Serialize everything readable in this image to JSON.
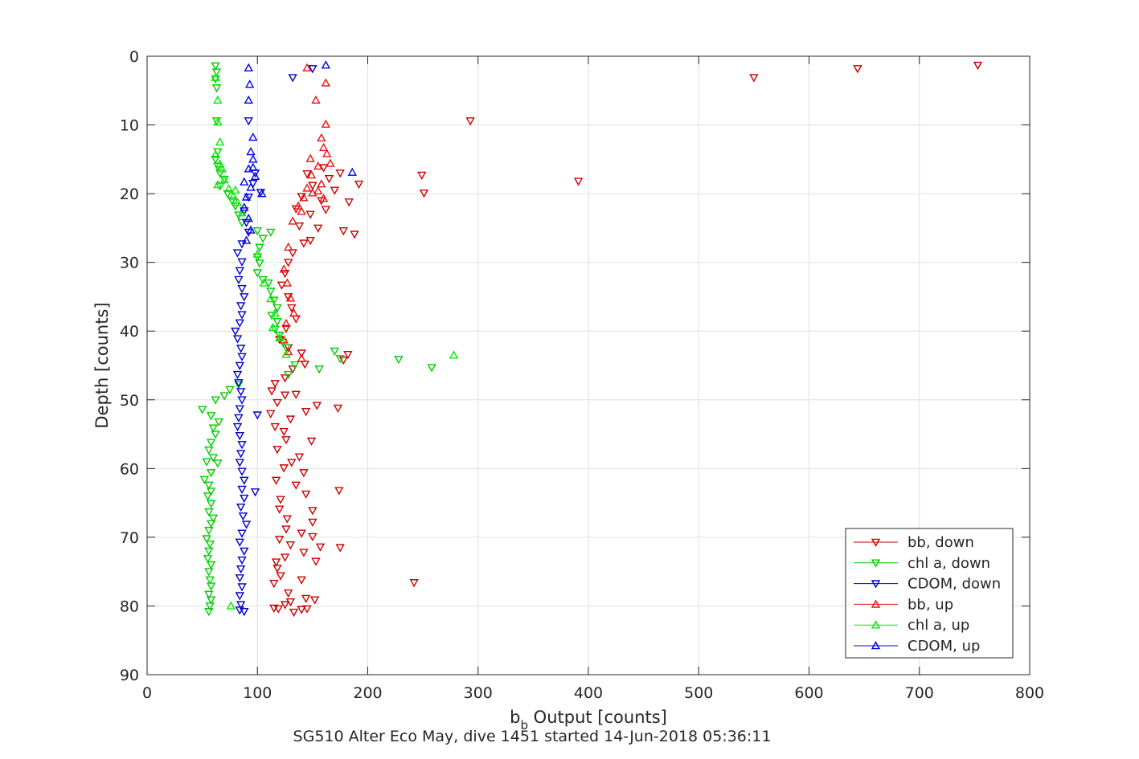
{
  "chart_data": {
    "type": "scatter",
    "title": "",
    "caption": "SG510 Alter Eco May, dive 1451 started 14-Jun-2018 05:36:11",
    "xlabel": {
      "main": "b",
      "subscript": "b",
      "rest": " Output [counts]"
    },
    "ylabel": "Depth [counts]",
    "xlim": [
      0,
      800
    ],
    "ylim": [
      0,
      90
    ],
    "y_reversed": true,
    "grid": true,
    "legend_position": "bottom-right",
    "x_ticks": [
      "0",
      "100",
      "200",
      "300",
      "400",
      "500",
      "600",
      "700",
      "800"
    ],
    "y_ticks": [
      "0",
      "10",
      "20",
      "30",
      "40",
      "50",
      "60",
      "70",
      "80",
      "90"
    ],
    "series": [
      {
        "name": "bb, down",
        "color": "#cc0000",
        "marker": "triangle-down",
        "points": [
          [
            753,
            1.3
          ],
          [
            644,
            1.8
          ],
          [
            550,
            3.1
          ],
          [
            293,
            9.4
          ],
          [
            391,
            18.2
          ],
          [
            249,
            17.3
          ],
          [
            251,
            19.9
          ],
          [
            242,
            76.6
          ],
          [
            160,
            16.2
          ],
          [
            165,
            17.8
          ],
          [
            170,
            19.5
          ],
          [
            158,
            21.0
          ],
          [
            150,
            18.8
          ],
          [
            145,
            17.1
          ],
          [
            140,
            20.4
          ],
          [
            135,
            22.2
          ],
          [
            148,
            23.0
          ],
          [
            162,
            22.3
          ],
          [
            175,
            17.0
          ],
          [
            192,
            18.6
          ],
          [
            183,
            21.2
          ],
          [
            178,
            25.4
          ],
          [
            188,
            25.9
          ],
          [
            155,
            25.0
          ],
          [
            148,
            26.8
          ],
          [
            138,
            24.7
          ],
          [
            142,
            27.2
          ],
          [
            132,
            28.6
          ],
          [
            128,
            30.0
          ],
          [
            125,
            31.6
          ],
          [
            122,
            33.3
          ],
          [
            128,
            35.0
          ],
          [
            131,
            36.6
          ],
          [
            135,
            38.2
          ],
          [
            126,
            39.6
          ],
          [
            120,
            41.2
          ],
          [
            128,
            42.4
          ],
          [
            140,
            43.2
          ],
          [
            182,
            43.4
          ],
          [
            178,
            44.2
          ],
          [
            143,
            44.8
          ],
          [
            132,
            45.5
          ],
          [
            125,
            46.8
          ],
          [
            116,
            47.6
          ],
          [
            113,
            48.7
          ],
          [
            125,
            49.3
          ],
          [
            135,
            49.2
          ],
          [
            118,
            50.4
          ],
          [
            154,
            50.8
          ],
          [
            173,
            51.2
          ],
          [
            144,
            51.7
          ],
          [
            112,
            52.0
          ],
          [
            130,
            52.8
          ],
          [
            116,
            53.9
          ],
          [
            124,
            54.6
          ],
          [
            126,
            55.8
          ],
          [
            149,
            56.0
          ],
          [
            118,
            57.2
          ],
          [
            138,
            58.3
          ],
          [
            131,
            59.1
          ],
          [
            124,
            59.9
          ],
          [
            142,
            60.6
          ],
          [
            117,
            61.7
          ],
          [
            135,
            62.4
          ],
          [
            174,
            63.2
          ],
          [
            144,
            63.7
          ],
          [
            121,
            64.5
          ],
          [
            120,
            65.9
          ],
          [
            150,
            66.1
          ],
          [
            127,
            67.3
          ],
          [
            150,
            67.8
          ],
          [
            126,
            68.8
          ],
          [
            140,
            69.4
          ],
          [
            150,
            69.9
          ],
          [
            120,
            70.3
          ],
          [
            130,
            71.1
          ],
          [
            157,
            71.4
          ],
          [
            175,
            71.5
          ],
          [
            142,
            72.2
          ],
          [
            125,
            72.9
          ],
          [
            117,
            73.6
          ],
          [
            153,
            73.5
          ],
          [
            118,
            74.5
          ],
          [
            121,
            75.6
          ],
          [
            140,
            76.2
          ],
          [
            115,
            76.7
          ],
          [
            128,
            78.1
          ],
          [
            144,
            78.9
          ],
          [
            130,
            79.4
          ],
          [
            152,
            79.1
          ],
          [
            115,
            80.3
          ],
          [
            125,
            79.8
          ],
          [
            140,
            80.5
          ],
          [
            133,
            80.9
          ],
          [
            119,
            80.4
          ],
          [
            145,
            80.4
          ]
        ]
      },
      {
        "name": "chl a, down",
        "color": "#00cc00",
        "marker": "triangle-down",
        "points": [
          [
            62,
            1.4
          ],
          [
            63,
            2.3
          ],
          [
            62,
            3.3
          ],
          [
            63,
            4.6
          ],
          [
            63,
            9.4
          ],
          [
            64,
            13.9
          ],
          [
            62,
            15.0
          ],
          [
            64,
            16.0
          ],
          [
            66,
            17.0
          ],
          [
            70,
            17.9
          ],
          [
            66,
            18.9
          ],
          [
            73,
            20.0
          ],
          [
            77,
            21.0
          ],
          [
            80,
            21.8
          ],
          [
            83,
            23.1
          ],
          [
            86,
            24.2
          ],
          [
            100,
            25.4
          ],
          [
            112,
            25.6
          ],
          [
            105,
            26.5
          ],
          [
            102,
            27.8
          ],
          [
            100,
            29.2
          ],
          [
            102,
            30.1
          ],
          [
            100,
            31.5
          ],
          [
            105,
            32.5
          ],
          [
            110,
            33.0
          ],
          [
            112,
            34.2
          ],
          [
            115,
            35.5
          ],
          [
            118,
            36.6
          ],
          [
            113,
            37.7
          ],
          [
            118,
            38.6
          ],
          [
            116,
            39.7
          ],
          [
            120,
            40.6
          ],
          [
            123,
            41.6
          ],
          [
            126,
            42.4
          ],
          [
            170,
            42.9
          ],
          [
            175,
            44.0
          ],
          [
            228,
            44.1
          ],
          [
            258,
            45.3
          ],
          [
            156,
            45.5
          ],
          [
            134,
            44.9
          ],
          [
            128,
            46.3
          ],
          [
            83,
            47.8
          ],
          [
            75,
            48.5
          ],
          [
            70,
            49.4
          ],
          [
            62,
            50.0
          ],
          [
            50,
            51.4
          ],
          [
            58,
            52.3
          ],
          [
            65,
            53.2
          ],
          [
            60,
            54.1
          ],
          [
            62,
            55.0
          ],
          [
            58,
            56.2
          ],
          [
            56,
            57.3
          ],
          [
            60,
            58.4
          ],
          [
            64,
            59.2
          ],
          [
            54,
            59.0
          ],
          [
            58,
            60.6
          ],
          [
            52,
            61.6
          ],
          [
            56,
            62.4
          ],
          [
            58,
            63.3
          ],
          [
            55,
            64.0
          ],
          [
            58,
            65.1
          ],
          [
            56,
            66.3
          ],
          [
            60,
            67.2
          ],
          [
            58,
            68.0
          ],
          [
            56,
            69.0
          ],
          [
            54,
            70.2
          ],
          [
            57,
            71.0
          ],
          [
            56,
            72.0
          ],
          [
            55,
            73.1
          ],
          [
            58,
            74.0
          ],
          [
            56,
            75.0
          ],
          [
            57,
            76.2
          ],
          [
            58,
            77.1
          ],
          [
            56,
            78.3
          ],
          [
            58,
            79.1
          ],
          [
            57,
            80.0
          ],
          [
            56,
            80.8
          ]
        ]
      },
      {
        "name": "CDOM, down",
        "color": "#0000cc",
        "marker": "triangle-down",
        "points": [
          [
            132,
            3.1
          ],
          [
            150,
            1.8
          ],
          [
            92,
            9.4
          ],
          [
            98,
            17.0
          ],
          [
            96,
            18.5
          ],
          [
            103,
            19.8
          ],
          [
            92,
            20.5
          ],
          [
            88,
            22.5
          ],
          [
            90,
            24.2
          ],
          [
            92,
            25.6
          ],
          [
            86,
            27.3
          ],
          [
            82,
            28.6
          ],
          [
            86,
            29.9
          ],
          [
            84,
            31.2
          ],
          [
            83,
            32.5
          ],
          [
            86,
            33.8
          ],
          [
            88,
            35.0
          ],
          [
            85,
            36.3
          ],
          [
            86,
            37.6
          ],
          [
            84,
            38.8
          ],
          [
            80,
            40.0
          ],
          [
            82,
            41.1
          ],
          [
            85,
            42.5
          ],
          [
            86,
            43.7
          ],
          [
            84,
            45.0
          ],
          [
            82,
            46.3
          ],
          [
            83,
            47.5
          ],
          [
            85,
            48.8
          ],
          [
            86,
            50.0
          ],
          [
            84,
            51.3
          ],
          [
            100,
            52.2
          ],
          [
            83,
            52.6
          ],
          [
            82,
            53.9
          ],
          [
            84,
            55.2
          ],
          [
            86,
            56.5
          ],
          [
            85,
            57.8
          ],
          [
            84,
            59.1
          ],
          [
            86,
            60.4
          ],
          [
            88,
            61.7
          ],
          [
            98,
            63.4
          ],
          [
            86,
            63.0
          ],
          [
            88,
            64.3
          ],
          [
            85,
            65.6
          ],
          [
            87,
            66.9
          ],
          [
            90,
            68.1
          ],
          [
            86,
            69.4
          ],
          [
            84,
            70.7
          ],
          [
            88,
            72.0
          ],
          [
            86,
            73.3
          ],
          [
            85,
            74.6
          ],
          [
            84,
            75.9
          ],
          [
            86,
            77.2
          ],
          [
            84,
            78.5
          ],
          [
            85,
            79.8
          ],
          [
            84,
            80.6
          ],
          [
            88,
            80.8
          ]
        ]
      },
      {
        "name": "bb, up",
        "color": "#ee1111",
        "marker": "triangle-up",
        "points": [
          [
            145,
            1.7
          ],
          [
            162,
            3.9
          ],
          [
            153,
            6.4
          ],
          [
            162,
            9.9
          ],
          [
            158,
            11.9
          ],
          [
            160,
            13.3
          ],
          [
            163,
            14.2
          ],
          [
            148,
            14.9
          ],
          [
            155,
            16.0
          ],
          [
            149,
            17.3
          ],
          [
            166,
            15.6
          ],
          [
            158,
            18.6
          ],
          [
            150,
            19.9
          ],
          [
            142,
            20.6
          ],
          [
            140,
            22.6
          ],
          [
            132,
            24.0
          ],
          [
            128,
            27.8
          ],
          [
            124,
            31.0
          ],
          [
            127,
            33.0
          ],
          [
            130,
            35.2
          ],
          [
            133,
            37.4
          ],
          [
            126,
            38.9
          ],
          [
            124,
            41.3
          ],
          [
            128,
            43.0
          ],
          [
            140,
            44.0
          ],
          [
            155,
            19.6
          ],
          [
            145,
            19.2
          ],
          [
            160,
            20.7
          ],
          [
            137,
            21.8
          ]
        ]
      },
      {
        "name": "chl a, up",
        "color": "#00ee00",
        "marker": "triangle-up",
        "points": [
          [
            62,
            3.1
          ],
          [
            64,
            6.4
          ],
          [
            64,
            9.6
          ],
          [
            66,
            12.5
          ],
          [
            62,
            14.3
          ],
          [
            66,
            15.7
          ],
          [
            68,
            16.4
          ],
          [
            70,
            18.0
          ],
          [
            74,
            19.3
          ],
          [
            78,
            20.4
          ],
          [
            82,
            21.3
          ],
          [
            86,
            22.8
          ],
          [
            100,
            28.8
          ],
          [
            106,
            33.0
          ],
          [
            112,
            35.3
          ],
          [
            116,
            37.4
          ],
          [
            114,
            39.5
          ],
          [
            120,
            41.0
          ],
          [
            126,
            43.4
          ],
          [
            278,
            43.5
          ],
          [
            76,
            80.0
          ],
          [
            80,
            19.5
          ],
          [
            64,
            18.7
          ]
        ]
      },
      {
        "name": "CDOM, up",
        "color": "#0000ee",
        "marker": "triangle-up",
        "points": [
          [
            162,
            1.3
          ],
          [
            92,
            1.7
          ],
          [
            93,
            4.1
          ],
          [
            92,
            6.4
          ],
          [
            96,
            11.8
          ],
          [
            94,
            13.9
          ],
          [
            96,
            15.0
          ],
          [
            92,
            16.4
          ],
          [
            98,
            17.5
          ],
          [
            94,
            19.1
          ],
          [
            90,
            20.5
          ],
          [
            88,
            22.0
          ],
          [
            92,
            23.6
          ],
          [
            94,
            25.3
          ],
          [
            90,
            26.8
          ],
          [
            186,
            16.9
          ],
          [
            104,
            20.0
          ],
          [
            88,
            18.3
          ],
          [
            96,
            16.2
          ]
        ]
      }
    ]
  }
}
